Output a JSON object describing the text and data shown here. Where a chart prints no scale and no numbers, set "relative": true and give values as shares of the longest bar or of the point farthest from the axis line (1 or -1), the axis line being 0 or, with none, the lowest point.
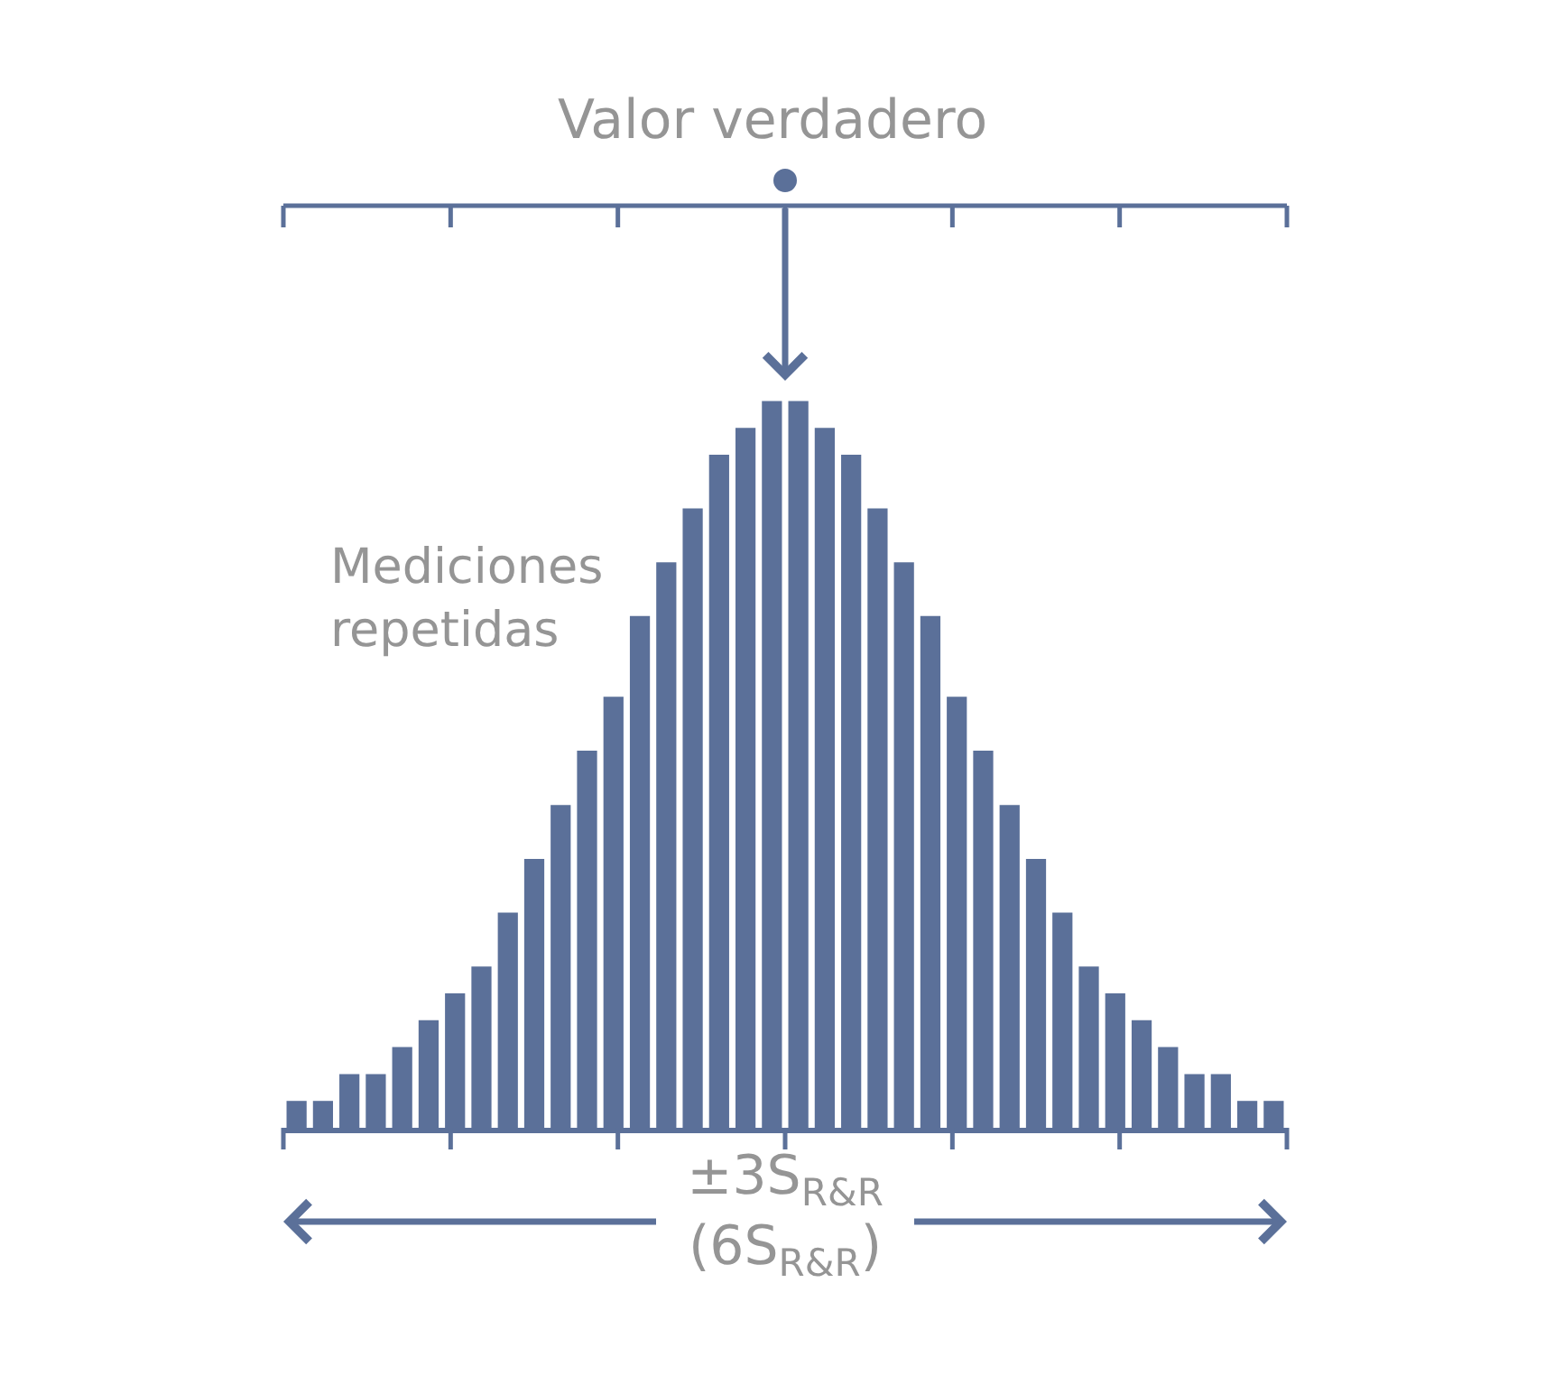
{
  "chart_data": {
    "type": "bar",
    "relative": true,
    "title": "Valor verdadero",
    "xlabel": "±3S$_{R&R}$\n(6S$_{R&R}$)",
    "annotations": [
      "Mediciones\nrepetidas"
    ],
    "color": "#5b7099",
    "categories": [
      null,
      null,
      null,
      null,
      null,
      null,
      null,
      null,
      null,
      null,
      null,
      null,
      null,
      null,
      null,
      null,
      null,
      null,
      null,
      null,
      null,
      null,
      null,
      null,
      null,
      null,
      null,
      null,
      null,
      null,
      null,
      null,
      null,
      null,
      null,
      null,
      null,
      null
    ],
    "values": [
      0.037,
      0.037,
      0.074,
      0.074,
      0.111,
      0.148,
      0.185,
      0.222,
      0.296,
      0.37,
      0.444,
      0.519,
      0.593,
      0.704,
      0.778,
      0.852,
      0.926,
      0.963,
      1,
      1,
      0.963,
      0.926,
      0.852,
      0.778,
      0.704,
      0.593,
      0.519,
      0.444,
      0.37,
      0.296,
      0.222,
      0.185,
      0.148,
      0.111,
      0.074,
      0.074,
      0.037,
      0.037
    ]
  }
}
